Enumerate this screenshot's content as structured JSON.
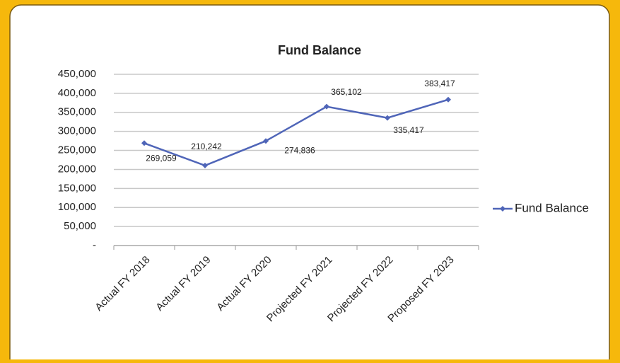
{
  "chart_data": {
    "type": "line",
    "title": "Fund Balance",
    "categories": [
      "Actual FY 2018",
      "Actual FY 2019",
      "Actual FY 2020",
      "Projected FY 2021",
      "Projected FY 2022",
      "Proposed FY 2023"
    ],
    "series": [
      {
        "name": "Fund Balance",
        "color": "#4f65b8",
        "values": [
          269059,
          210242,
          274836,
          365102,
          335417,
          383417
        ],
        "value_labels": [
          "269,059",
          "210,242",
          "274,836",
          "365,102",
          "335,417",
          "383,417"
        ]
      }
    ],
    "ylim": [
      0,
      450000
    ],
    "yticks": [
      {
        "value": 0,
        "label": "-"
      },
      {
        "value": 50000,
        "label": "50,000"
      },
      {
        "value": 100000,
        "label": "100,000"
      },
      {
        "value": 150000,
        "label": "150,000"
      },
      {
        "value": 200000,
        "label": "200,000"
      },
      {
        "value": 250000,
        "label": "250,000"
      },
      {
        "value": 300000,
        "label": "300,000"
      },
      {
        "value": 350000,
        "label": "350,000"
      },
      {
        "value": 400000,
        "label": "400,000"
      },
      {
        "value": 450000,
        "label": "450,000"
      }
    ],
    "grid": true,
    "legend": "right"
  }
}
